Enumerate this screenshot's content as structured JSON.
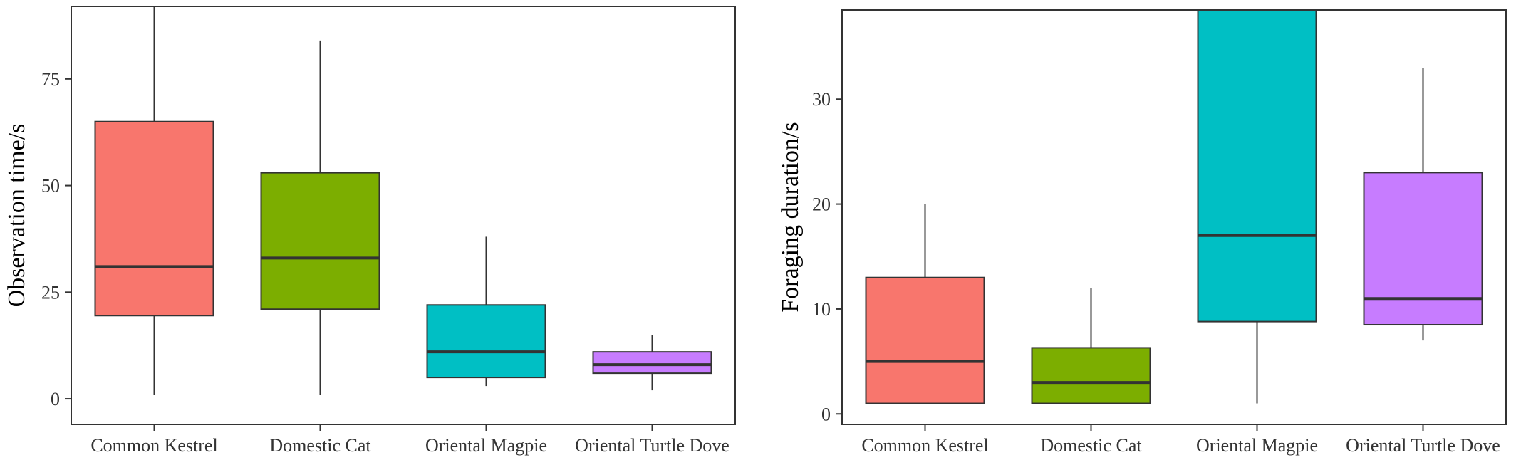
{
  "chart_data": [
    {
      "type": "box",
      "xlabel": "",
      "ylabel": "Observation time/s",
      "ylim": [
        -6,
        92
      ],
      "yticks": [
        0,
        25,
        50,
        75
      ],
      "grid": false,
      "legend": "none",
      "categories": [
        "Common Kestrel",
        "Domestic Cat",
        "Oriental Magpie",
        "Oriental Turtle Dove"
      ],
      "colors": [
        "#F8766D",
        "#7CAE00",
        "#00BFC4",
        "#C77CFF"
      ],
      "boxes": [
        {
          "min": 1,
          "q1": 19.5,
          "median": 31,
          "q3": 65,
          "max": 92
        },
        {
          "min": 1,
          "q1": 21,
          "median": 33,
          "q3": 53,
          "max": 84
        },
        {
          "min": 3,
          "q1": 5,
          "median": 11,
          "q3": 22,
          "max": 38
        },
        {
          "min": 2,
          "q1": 6,
          "median": 8,
          "q3": 11,
          "max": 15
        }
      ]
    },
    {
      "type": "box",
      "xlabel": "",
      "ylabel": "Foraging duration/s",
      "ylim": [
        -1,
        38.5
      ],
      "yticks": [
        0,
        10,
        20,
        30
      ],
      "grid": false,
      "legend": "none",
      "categories": [
        "Common Kestrel",
        "Domestic Cat",
        "Oriental Magpie",
        "Oriental Turtle Dove"
      ],
      "colors": [
        "#F8766D",
        "#7CAE00",
        "#00BFC4",
        "#C77CFF"
      ],
      "boxes": [
        {
          "min": 1,
          "q1": 1,
          "median": 5,
          "q3": 13,
          "max": 20
        },
        {
          "min": 1,
          "q1": 1,
          "median": 3,
          "q3": 6.3,
          "max": 12
        },
        {
          "min": 1,
          "q1": 8.8,
          "median": 17,
          "q3": 38.5,
          "max": 38.5
        },
        {
          "min": 7,
          "q1": 8.5,
          "median": 11,
          "q3": 23,
          "max": 33
        }
      ]
    }
  ]
}
